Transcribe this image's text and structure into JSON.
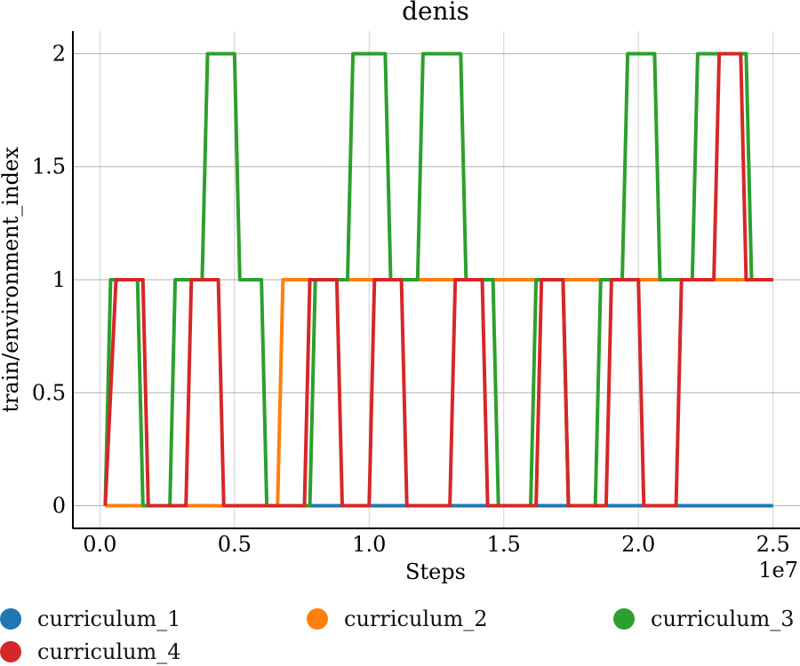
{
  "chart_data": {
    "type": "line",
    "title": "denis",
    "xlabel": "Steps",
    "ylabel": "train/environment_index",
    "x_exponent_label": "1e7",
    "xlim": [
      -0.1,
      2.6
    ],
    "ylim": [
      -0.1,
      2.1
    ],
    "x_ticks": [
      0.0,
      0.5,
      1.0,
      1.5,
      2.0,
      2.5
    ],
    "x_tick_labels": [
      "0.0",
      "0.5",
      "1.0",
      "1.5",
      "2.0",
      "2.5"
    ],
    "y_ticks": [
      0,
      0.5,
      1,
      1.5,
      2
    ],
    "y_tick_labels": [
      "0",
      "0.5",
      "1",
      "1.5",
      "2"
    ],
    "grid": true,
    "legend_position": "bottom",
    "x_unit_note": "x values in units of 1e7 steps",
    "series": [
      {
        "name": "curriculum_1",
        "color": "#1f77b4",
        "x": [
          0.02,
          2.5
        ],
        "y": [
          0,
          0
        ]
      },
      {
        "name": "curriculum_2",
        "color": "#ff7f0e",
        "x": [
          0.02,
          0.66,
          0.68,
          2.5
        ],
        "y": [
          0,
          0,
          1,
          1
        ]
      },
      {
        "name": "curriculum_3",
        "color": "#2ca02c",
        "x": [
          0.02,
          0.04,
          0.14,
          0.16,
          0.26,
          0.28,
          0.38,
          0.4,
          0.5,
          0.52,
          0.6,
          0.62,
          0.78,
          0.8,
          0.92,
          0.94,
          1.06,
          1.08,
          1.18,
          1.2,
          1.34,
          1.36,
          1.46,
          1.48,
          1.6,
          1.62,
          1.72,
          1.74,
          1.84,
          1.86,
          1.94,
          1.96,
          2.06,
          2.08,
          2.2,
          2.22,
          2.4,
          2.42,
          2.5
        ],
        "y": [
          0,
          1,
          1,
          0,
          0,
          1,
          1,
          2,
          2,
          1,
          1,
          0,
          0,
          1,
          1,
          2,
          2,
          1,
          1,
          2,
          2,
          1,
          1,
          0,
          0,
          1,
          1,
          0,
          0,
          1,
          1,
          2,
          2,
          1,
          1,
          2,
          2,
          1,
          1
        ]
      },
      {
        "name": "curriculum_4",
        "color": "#d62728",
        "x": [
          0.02,
          0.06,
          0.16,
          0.18,
          0.32,
          0.34,
          0.44,
          0.46,
          0.76,
          0.78,
          0.88,
          0.9,
          1.0,
          1.02,
          1.12,
          1.14,
          1.3,
          1.32,
          1.42,
          1.44,
          1.62,
          1.64,
          1.72,
          1.74,
          1.88,
          1.9,
          2.0,
          2.02,
          2.14,
          2.16,
          2.28,
          2.3,
          2.38,
          2.4,
          2.5
        ],
        "y": [
          0,
          1,
          1,
          0,
          0,
          1,
          1,
          0,
          0,
          1,
          1,
          0,
          0,
          1,
          1,
          0,
          0,
          1,
          1,
          0,
          0,
          1,
          1,
          0,
          0,
          1,
          1,
          0,
          0,
          1,
          1,
          2,
          2,
          1,
          1
        ]
      }
    ]
  }
}
